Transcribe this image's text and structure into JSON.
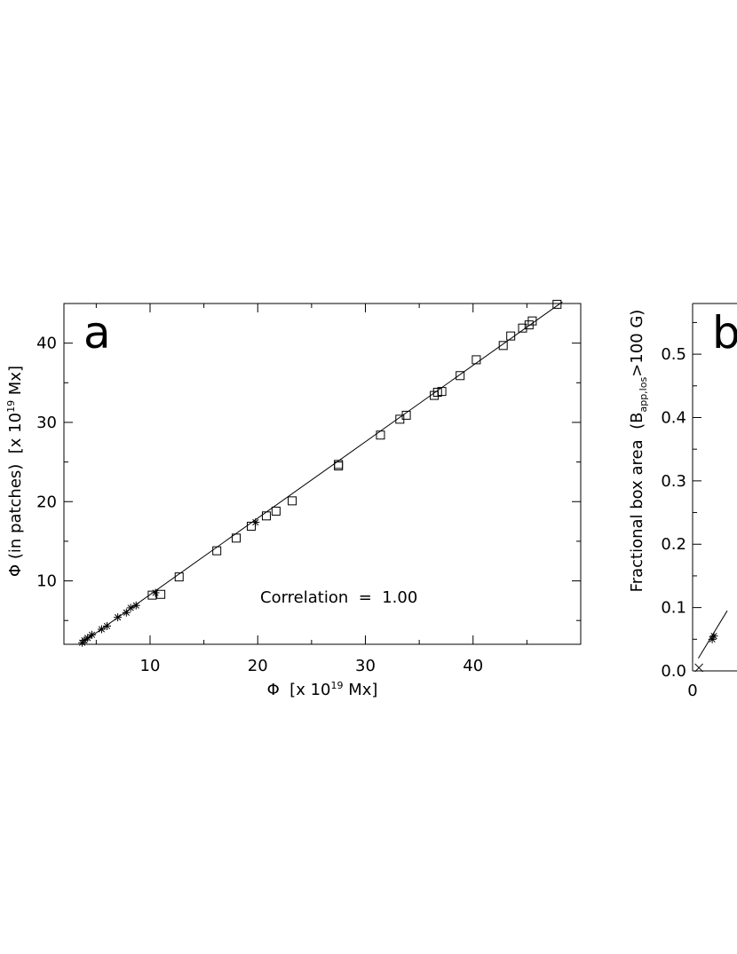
{
  "panels": [
    {
      "id": "a",
      "letter": "a",
      "annotation": "Correlation  =  1.00",
      "xlabel_pre": "Φ  [x 10",
      "xlabel_sup": "19",
      "xlabel_post": " Mx]",
      "ylabel_pre": "Φ (in patches)  [x 10",
      "ylabel_sup": "19",
      "ylabel_post": " Mx]",
      "xlim": [
        2,
        50
      ],
      "ylim": [
        2,
        45
      ],
      "xticks": [
        10,
        20,
        30,
        40
      ],
      "yticks": [
        10,
        20,
        30,
        40
      ],
      "xticklabels": [
        "10",
        "20",
        "30",
        "40"
      ],
      "yticklabels": [
        "10",
        "20",
        "30",
        "40"
      ]
    },
    {
      "id": "b",
      "letter": "b",
      "ylabel_pre": "Fractional box area  (B",
      "ylabel_sub": "app,los",
      "ylabel_post": ">100 G)",
      "ylim": [
        0.0,
        0.58
      ],
      "yticks": [
        0.0,
        0.1,
        0.2,
        0.3,
        0.4,
        0.5
      ],
      "yticklabels": [
        "0.0",
        "0.1",
        "0.2",
        "0.3",
        "0.4",
        "0.5"
      ],
      "xticklabels_visible": [
        "0"
      ]
    }
  ],
  "chart_data": [
    {
      "type": "scatter",
      "panel": "a",
      "series": [
        {
          "marker": "asterisk",
          "points": [
            [
              3.7,
              2.2
            ],
            [
              3.9,
              2.5
            ],
            [
              4.2,
              2.8
            ],
            [
              4.6,
              3.2
            ],
            [
              5.5,
              3.9
            ],
            [
              6.0,
              4.3
            ],
            [
              7.0,
              5.4
            ],
            [
              7.8,
              6.0
            ],
            [
              8.2,
              6.6
            ],
            [
              8.7,
              6.9
            ],
            [
              10.5,
              8.5
            ],
            [
              19.8,
              17.4
            ]
          ]
        },
        {
          "marker": "square",
          "points": [
            [
              10.2,
              8.2
            ],
            [
              11.0,
              8.3
            ],
            [
              12.7,
              10.5
            ],
            [
              16.2,
              13.8
            ],
            [
              18.0,
              15.4
            ],
            [
              19.4,
              16.9
            ],
            [
              20.8,
              18.2
            ],
            [
              21.7,
              18.8
            ],
            [
              23.2,
              20.1
            ],
            [
              27.5,
              24.5
            ],
            [
              27.5,
              24.7
            ],
            [
              31.4,
              28.4
            ],
            [
              33.2,
              30.4
            ],
            [
              33.8,
              30.9
            ],
            [
              36.4,
              33.4
            ],
            [
              36.7,
              33.8
            ],
            [
              37.1,
              33.9
            ],
            [
              38.8,
              35.9
            ],
            [
              40.3,
              37.9
            ],
            [
              42.8,
              39.7
            ],
            [
              43.5,
              40.9
            ],
            [
              44.6,
              41.9
            ],
            [
              45.2,
              42.3
            ],
            [
              45.5,
              42.8
            ],
            [
              47.8,
              44.9
            ]
          ]
        }
      ],
      "fit": {
        "x": [
          3.5,
          48.3
        ],
        "y": [
          2.0,
          45.2
        ]
      }
    },
    {
      "type": "scatter",
      "panel": "b",
      "series": [
        {
          "marker": "x",
          "points": [
            [
              1.1,
              0.005
            ]
          ]
        },
        {
          "marker": "asterisk",
          "points": [
            [
              3.4,
              0.05
            ],
            [
              3.7,
              0.055
            ]
          ]
        }
      ],
      "fit": {
        "x": [
          1.0,
          6.0
        ],
        "y": [
          0.02,
          0.095
        ]
      }
    }
  ]
}
